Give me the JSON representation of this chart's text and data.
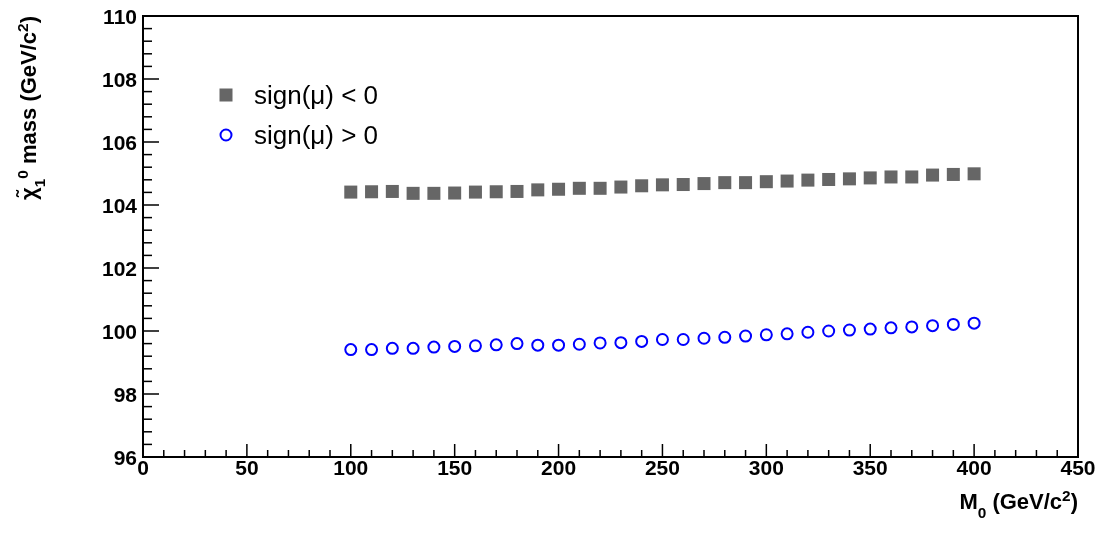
{
  "chart_data": {
    "type": "scatter",
    "xlabel": "M$_{0}$ (GeV/c$^{2}$)",
    "ylabel": "χ̃$_{1}$$^{0}$ mass (GeV/c$^{2}$)",
    "x": [
      100,
      110,
      120,
      130,
      140,
      150,
      160,
      170,
      180,
      190,
      200,
      210,
      220,
      230,
      240,
      250,
      260,
      270,
      280,
      290,
      300,
      310,
      320,
      330,
      340,
      350,
      360,
      370,
      380,
      390,
      400
    ],
    "series": [
      {
        "name": "sign(μ) < 0",
        "color": "#666666",
        "marker": "square",
        "values": [
          104.41,
          104.42,
          104.43,
          104.37,
          104.37,
          104.38,
          104.41,
          104.42,
          104.43,
          104.48,
          104.5,
          104.53,
          104.53,
          104.57,
          104.61,
          104.64,
          104.65,
          104.68,
          104.71,
          104.71,
          104.74,
          104.76,
          104.79,
          104.81,
          104.83,
          104.86,
          104.89,
          104.89,
          104.95,
          104.97,
          104.99
        ]
      },
      {
        "name": "sign(μ) > 0",
        "color": "#0000ff",
        "marker": "circle",
        "values": [
          99.41,
          99.41,
          99.45,
          99.45,
          99.49,
          99.51,
          99.53,
          99.56,
          99.6,
          99.55,
          99.55,
          99.58,
          99.62,
          99.63,
          99.67,
          99.73,
          99.73,
          99.77,
          99.8,
          99.84,
          99.88,
          99.91,
          99.96,
          100.0,
          100.03,
          100.06,
          100.1,
          100.13,
          100.17,
          100.21,
          100.25
        ]
      }
    ],
    "xlim": [
      0,
      450
    ],
    "xticks": [
      0,
      {
        "value": 10,
        "label": null
      },
      {
        "value": 20,
        "label": null
      },
      {
        "value": 30,
        "label": null
      },
      {
        "value": 40,
        "label": null
      },
      50,
      {
        "value": 60,
        "label": null
      },
      {
        "value": 70,
        "label": null
      },
      {
        "value": 80,
        "label": null
      },
      {
        "value": 90,
        "label": null
      },
      100,
      {
        "value": 110,
        "label": null
      },
      {
        "value": 120,
        "label": null
      },
      {
        "value": 130,
        "label": null
      },
      {
        "value": 140,
        "label": null
      },
      150,
      {
        "value": 160,
        "label": null
      },
      {
        "value": 170,
        "label": null
      },
      {
        "value": 180,
        "label": null
      },
      {
        "value": 190,
        "label": null
      },
      200,
      {
        "value": 210,
        "label": null
      },
      {
        "value": 220,
        "label": null
      },
      {
        "value": 230,
        "label": null
      },
      {
        "value": 240,
        "label": null
      },
      250,
      {
        "value": 260,
        "label": null
      },
      {
        "value": 270,
        "label": null
      },
      {
        "value": 280,
        "label": null
      },
      {
        "value": 290,
        "label": null
      },
      300,
      {
        "value": 310,
        "label": null
      },
      {
        "value": 320,
        "label": null
      },
      {
        "value": 330,
        "label": null
      },
      {
        "value": 340,
        "label": null
      },
      350,
      {
        "value": 360,
        "label": null
      },
      {
        "value": 370,
        "label": null
      },
      {
        "value": 380,
        "label": null
      },
      {
        "value": 390,
        "label": null
      },
      400,
      {
        "value": 410,
        "label": null
      },
      {
        "value": 420,
        "label": null
      },
      {
        "value": 430,
        "label": null
      },
      {
        "value": 440,
        "label": null
      },
      450
    ],
    "ylim": [
      96,
      110
    ],
    "yticks": [
      96,
      {
        "value": 96.4,
        "label": null
      },
      {
        "value": 96.8,
        "label": null
      },
      {
        "value": 97.2,
        "label": null
      },
      {
        "value": 97.6,
        "label": null
      },
      98,
      {
        "value": 98.4,
        "label": null
      },
      {
        "value": 98.8,
        "label": null
      },
      {
        "value": 99.2,
        "label": null
      },
      {
        "value": 99.6,
        "label": null
      },
      100,
      {
        "value": 100.4,
        "label": null
      },
      {
        "value": 100.8,
        "label": null
      },
      {
        "value": 101.2,
        "label": null
      },
      {
        "value": 101.6,
        "label": null
      },
      102,
      {
        "value": 102.4,
        "label": null
      },
      {
        "value": 102.8,
        "label": null
      },
      {
        "value": 103.2,
        "label": null
      },
      {
        "value": 103.6,
        "label": null
      },
      104,
      {
        "value": 104.4,
        "label": null
      },
      {
        "value": 104.8,
        "label": null
      },
      {
        "value": 105.2,
        "label": null
      },
      {
        "value": 105.6,
        "label": null
      },
      106,
      {
        "value": 106.4,
        "label": null
      },
      {
        "value": 106.8,
        "label": null
      },
      {
        "value": 107.2,
        "label": null
      },
      {
        "value": 107.6,
        "label": null
      },
      108,
      {
        "value": 108.4,
        "label": null
      },
      {
        "value": 108.8,
        "label": null
      },
      {
        "value": 109.2,
        "label": null
      },
      {
        "value": 109.6,
        "label": null
      },
      110
    ],
    "grid": false,
    "legend": "top left"
  }
}
